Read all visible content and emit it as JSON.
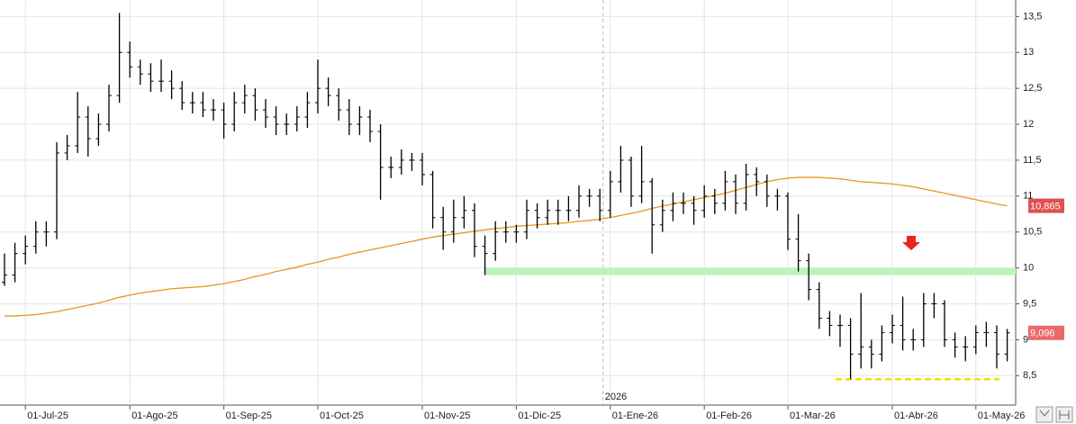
{
  "chart_data": {
    "type": "ohlc",
    "categories": [
      null,
      null,
      "01-Jul-25",
      null,
      null,
      null,
      null,
      null,
      null,
      null,
      null,
      null,
      "01-Ago-25",
      null,
      null,
      null,
      null,
      null,
      null,
      null,
      null,
      "01-Sep-25",
      null,
      null,
      null,
      null,
      null,
      null,
      null,
      null,
      "01-Oct-25",
      null,
      null,
      null,
      null,
      null,
      null,
      null,
      null,
      null,
      "01-Nov-25",
      null,
      null,
      null,
      null,
      null,
      null,
      null,
      null,
      "01-Dic-25",
      null,
      null,
      null,
      null,
      null,
      null,
      null,
      null,
      "01-Ene-26",
      null,
      null,
      null,
      null,
      null,
      null,
      null,
      null,
      "01-Feb-26",
      null,
      null,
      null,
      null,
      null,
      null,
      null,
      "01-Mar-26",
      null,
      null,
      null,
      null,
      null,
      null,
      null,
      null,
      null,
      "01-Abr-26",
      null,
      null,
      null,
      null,
      null,
      null,
      null,
      "01-May-26",
      null,
      null,
      null
    ],
    "open": [
      9.8,
      9.9,
      10.2,
      10.3,
      10.5,
      10.5,
      11.6,
      11.7,
      12.1,
      11.8,
      12.0,
      12.4,
      13.0,
      12.8,
      12.7,
      12.6,
      12.6,
      12.5,
      12.3,
      12.3,
      12.2,
      12.2,
      12.0,
      12.3,
      12.4,
      12.2,
      12.1,
      12.0,
      12.0,
      12.1,
      12.3,
      12.5,
      12.4,
      12.2,
      12.0,
      12.1,
      11.9,
      11.4,
      11.4,
      11.5,
      11.5,
      11.3,
      10.7,
      10.5,
      10.7,
      10.8,
      10.3,
      10.2,
      10.5,
      10.5,
      10.5,
      10.8,
      10.7,
      10.8,
      10.8,
      10.8,
      11.0,
      11.0,
      10.8,
      11.2,
      11.5,
      11.0,
      11.2,
      10.6,
      10.8,
      10.9,
      10.9,
      10.8,
      11.0,
      10.9,
      11.2,
      10.9,
      11.3,
      11.2,
      11.0,
      11.0,
      10.4,
      10.1,
      9.7,
      9.3,
      9.2,
      9.2,
      8.8,
      8.9,
      8.8,
      9.1,
      9.2,
      9.0,
      9.0,
      9.5,
      9.5,
      9.0,
      8.9,
      8.9,
      9.1,
      9.1,
      8.8
    ],
    "high": [
      10.2,
      10.35,
      10.45,
      10.65,
      10.65,
      11.75,
      11.85,
      12.45,
      12.25,
      12.15,
      12.55,
      13.55,
      13.15,
      12.9,
      12.85,
      12.9,
      12.75,
      12.6,
      12.45,
      12.45,
      12.35,
      12.3,
      12.45,
      12.55,
      12.5,
      12.35,
      12.25,
      12.15,
      12.25,
      12.45,
      12.9,
      12.65,
      12.5,
      12.35,
      12.25,
      12.2,
      12.0,
      11.55,
      11.65,
      11.6,
      11.6,
      11.35,
      10.85,
      10.95,
      11.0,
      10.9,
      10.45,
      10.65,
      10.65,
      10.6,
      10.95,
      10.9,
      10.95,
      10.95,
      11.0,
      11.15,
      11.1,
      11.1,
      11.35,
      11.7,
      11.55,
      11.7,
      11.25,
      10.95,
      11.05,
      11.05,
      11.0,
      11.15,
      11.1,
      11.35,
      11.3,
      11.45,
      11.4,
      11.3,
      11.1,
      11.05,
      10.75,
      10.2,
      9.8,
      9.4,
      9.35,
      9.3,
      9.65,
      9.0,
      9.2,
      9.35,
      9.6,
      9.15,
      9.65,
      9.65,
      9.55,
      9.1,
      9.05,
      9.2,
      9.25,
      9.2,
      9.15
    ],
    "low": [
      9.75,
      9.8,
      10.05,
      10.2,
      10.3,
      10.4,
      11.5,
      11.6,
      11.55,
      11.7,
      11.9,
      12.3,
      12.65,
      12.55,
      12.45,
      12.45,
      12.35,
      12.2,
      12.15,
      12.1,
      12.05,
      11.8,
      11.9,
      12.15,
      12.05,
      11.95,
      11.85,
      11.85,
      11.9,
      11.95,
      12.15,
      12.25,
      12.05,
      11.85,
      11.85,
      11.75,
      10.95,
      11.25,
      11.3,
      11.35,
      11.15,
      10.55,
      10.25,
      10.35,
      10.55,
      10.15,
      9.9,
      10.1,
      10.35,
      10.35,
      10.4,
      10.55,
      10.6,
      10.6,
      10.65,
      10.7,
      10.85,
      10.65,
      10.7,
      11.05,
      10.85,
      10.9,
      10.2,
      10.5,
      10.65,
      10.75,
      10.6,
      10.7,
      10.75,
      10.8,
      10.75,
      10.8,
      11.0,
      10.85,
      10.8,
      10.25,
      9.95,
      9.55,
      9.15,
      9.05,
      8.9,
      8.45,
      8.6,
      8.6,
      8.7,
      8.95,
      8.85,
      8.85,
      8.9,
      9.3,
      8.9,
      8.75,
      8.7,
      8.8,
      8.9,
      8.6,
      8.7
    ],
    "close": [
      9.9,
      10.2,
      10.3,
      10.5,
      10.5,
      11.6,
      11.7,
      12.1,
      11.8,
      12.0,
      12.4,
      13.0,
      12.8,
      12.7,
      12.6,
      12.6,
      12.5,
      12.3,
      12.3,
      12.2,
      12.2,
      12.0,
      12.3,
      12.4,
      12.2,
      12.1,
      12.0,
      12.0,
      12.1,
      12.3,
      12.5,
      12.4,
      12.2,
      12.0,
      12.1,
      11.9,
      11.4,
      11.4,
      11.5,
      11.5,
      11.3,
      10.7,
      10.5,
      10.7,
      10.8,
      10.3,
      10.2,
      10.5,
      10.5,
      10.5,
      10.8,
      10.7,
      10.8,
      10.8,
      10.8,
      11.0,
      11.0,
      10.8,
      11.2,
      11.5,
      11.0,
      11.2,
      10.6,
      10.8,
      10.9,
      10.9,
      10.8,
      11.0,
      10.9,
      11.2,
      10.9,
      11.3,
      11.2,
      11.0,
      11.0,
      10.4,
      10.1,
      9.7,
      9.3,
      9.2,
      9.2,
      8.8,
      8.9,
      8.8,
      9.1,
      9.2,
      9.0,
      9.0,
      9.5,
      9.5,
      9.0,
      8.9,
      8.9,
      9.1,
      9.1,
      8.8,
      9.096
    ],
    "color": "#000000",
    "moving_average": {
      "color": "#e8961e",
      "values": [
        9.33,
        9.33,
        9.34,
        9.35,
        9.37,
        9.39,
        9.42,
        9.45,
        9.48,
        9.51,
        9.55,
        9.59,
        9.62,
        9.65,
        9.67,
        9.69,
        9.71,
        9.72,
        9.73,
        9.74,
        9.76,
        9.78,
        9.81,
        9.84,
        9.88,
        9.91,
        9.95,
        9.98,
        10.01,
        10.05,
        10.08,
        10.12,
        10.15,
        10.19,
        10.22,
        10.25,
        10.28,
        10.31,
        10.34,
        10.37,
        10.4,
        10.43,
        10.45,
        10.47,
        10.49,
        10.51,
        10.53,
        10.55,
        10.56,
        10.58,
        10.59,
        10.6,
        10.61,
        10.62,
        10.63,
        10.65,
        10.66,
        10.68,
        10.7,
        10.73,
        10.76,
        10.79,
        10.83,
        10.86,
        10.89,
        10.92,
        10.95,
        10.98,
        11.01,
        11.04,
        11.08,
        11.12,
        11.16,
        11.2,
        11.23,
        11.25,
        11.26,
        11.26,
        11.26,
        11.25,
        11.24,
        11.22,
        11.2,
        11.19,
        11.18,
        11.17,
        11.15,
        11.13,
        11.1,
        11.07,
        11.04,
        11.01,
        10.98,
        10.95,
        10.92,
        10.89,
        10.865
      ]
    },
    "ma_tag": {
      "value": 10.865,
      "label": "10,865"
    },
    "price_tag": {
      "value": 9.096,
      "label": "9,096"
    },
    "support_band": {
      "range": [
        9.9,
        10.0
      ],
      "color": "#b9f5b9"
    },
    "low_line": {
      "value": 8.45,
      "color": "#f0e000"
    },
    "year_marker": "2026",
    "ylim": [
      8.09,
      13.73
    ],
    "yticks": [
      {
        "value": 8.5,
        "label": "8,5"
      },
      9,
      {
        "value": 9.5,
        "label": "9,5"
      },
      10,
      {
        "value": 10.5,
        "label": "10,5"
      },
      11,
      {
        "value": 11.5,
        "label": "11,5"
      },
      12,
      {
        "value": 12.5,
        "label": "12,5"
      },
      13,
      {
        "value": 13.5,
        "label": "13,5"
      }
    ],
    "grid": true
  }
}
